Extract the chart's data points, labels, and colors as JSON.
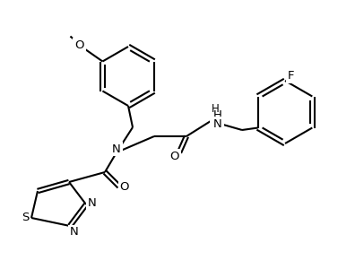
{
  "background_color": "#ffffff",
  "line_color": "#000000",
  "line_width": 1.5,
  "font_size": 9.5,
  "figsize": [
    3.96,
    3.0
  ],
  "dpi": 100,
  "atoms": {
    "S": "S",
    "N": "N",
    "O": "O",
    "F": "F",
    "NH": "H\nN",
    "OMe_line": "O"
  }
}
